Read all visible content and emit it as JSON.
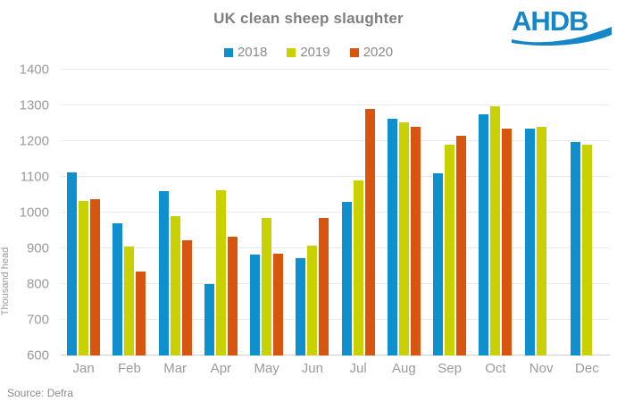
{
  "header": {
    "title": "UK clean sheep slaughter",
    "logo_text": "AHDB",
    "logo_color": "#1587c8"
  },
  "footer": {
    "source": "Source: Defra"
  },
  "chart_data": {
    "type": "bar",
    "title": "UK clean sheep slaughter",
    "xlabel": "",
    "ylabel": "Thousand head",
    "ylim": [
      600,
      1400
    ],
    "ytick_step": 100,
    "yticks": [
      600,
      700,
      800,
      900,
      1000,
      1100,
      1200,
      1300,
      1400
    ],
    "grid": true,
    "legend_position": "top",
    "categories": [
      "Jan",
      "Feb",
      "Mar",
      "Apr",
      "May",
      "Jun",
      "Jul",
      "Aug",
      "Sep",
      "Oct",
      "Nov",
      "Dec"
    ],
    "series": [
      {
        "name": "2018",
        "color": "#0e8fce",
        "values": [
          1113,
          970,
          1060,
          800,
          882,
          872,
          1031,
          1262,
          1111,
          1276,
          1235,
          1198
        ]
      },
      {
        "name": "2019",
        "color": "#c9d200",
        "values": [
          1033,
          906,
          989,
          1063,
          985,
          907,
          1090,
          1253,
          1189,
          1298,
          1241,
          1190
        ]
      },
      {
        "name": "2020",
        "color": "#d8550f",
        "values": [
          1038,
          836,
          923,
          933,
          884,
          984,
          1291,
          1241,
          1214,
          1236,
          null,
          null
        ]
      }
    ]
  }
}
